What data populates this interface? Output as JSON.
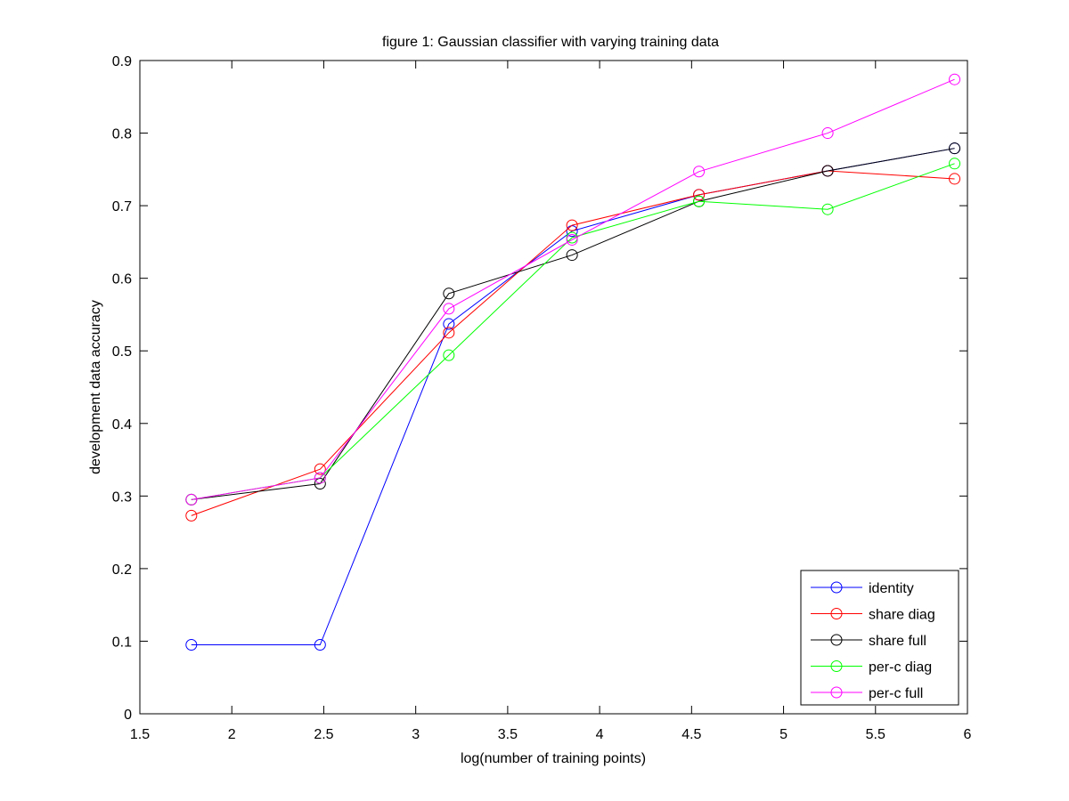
{
  "chart_data": {
    "type": "line",
    "title": "figure 1: Gaussian classifier with varying training data",
    "xlabel": "log(number of training points)",
    "ylabel": "development data accuracy",
    "xlim": [
      1.5,
      6
    ],
    "ylim": [
      0,
      0.9
    ],
    "xticks": [
      1.5,
      2,
      2.5,
      3,
      3.5,
      4,
      4.5,
      5,
      5.5,
      6
    ],
    "xtick_labels": [
      "1.5",
      "2",
      "2.5",
      "3",
      "3.5",
      "4",
      "4.5",
      "5",
      "5.5",
      "6"
    ],
    "yticks": [
      0,
      0.1,
      0.2,
      0.3,
      0.4,
      0.5,
      0.6,
      0.7,
      0.8,
      0.9
    ],
    "ytick_labels": [
      "0",
      "0.1",
      "0.2",
      "0.3",
      "0.4",
      "0.5",
      "0.6",
      "0.7",
      "0.8",
      "0.9"
    ],
    "grid": false,
    "marker": "circle",
    "legend_position": "bottom-right",
    "x": [
      1.78,
      2.48,
      3.18,
      3.85,
      4.54,
      5.24,
      5.93
    ],
    "series": [
      {
        "name": "identity",
        "color": "#0000ff",
        "values": [
          0.095,
          0.095,
          0.537,
          0.665,
          0.715,
          0.748,
          0.779
        ]
      },
      {
        "name": "share diag",
        "color": "#ff0000",
        "values": [
          0.273,
          0.337,
          0.525,
          0.673,
          0.715,
          0.748,
          0.737
        ]
      },
      {
        "name": "share full",
        "color": "#000000",
        "values": [
          0.295,
          0.317,
          0.579,
          0.632,
          0.706,
          0.748,
          0.779
        ]
      },
      {
        "name": "per-c diag",
        "color": "#00ff00",
        "values": [
          0.295,
          0.325,
          0.494,
          0.656,
          0.706,
          0.695,
          0.758
        ]
      },
      {
        "name": "per-c full",
        "color": "#ff00ff",
        "values": [
          0.295,
          0.325,
          0.558,
          0.653,
          0.747,
          0.8,
          0.874
        ]
      }
    ]
  }
}
